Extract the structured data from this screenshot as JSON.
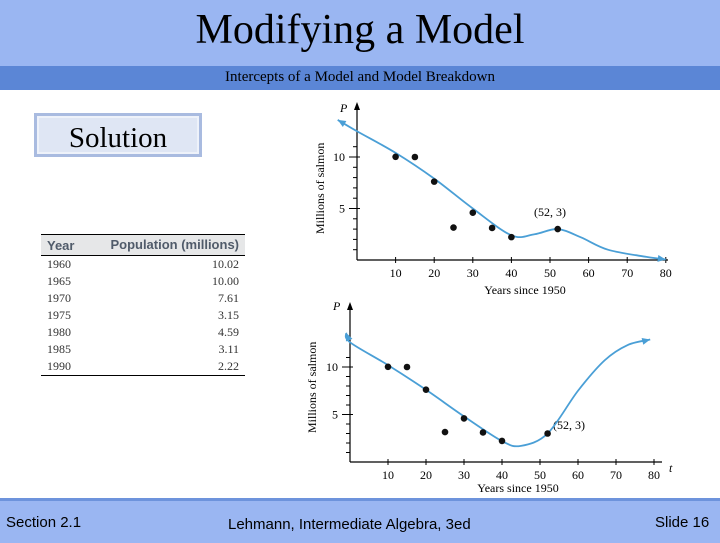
{
  "slide": {
    "title": "Modifying a Model",
    "subtitle": "Intercepts of a Model and Model Breakdown",
    "solution_label": "Solution"
  },
  "table": {
    "headers": [
      "Year",
      "Population (millions)"
    ],
    "rows": [
      [
        "1960",
        "10.02"
      ],
      [
        "1965",
        "10.00"
      ],
      [
        "1970",
        "7.61"
      ],
      [
        "1975",
        "3.15"
      ],
      [
        "1980",
        "4.59"
      ],
      [
        "1985",
        "3.11"
      ],
      [
        "1990",
        "2.22"
      ]
    ]
  },
  "graph_top": {
    "y_axis_var": "P",
    "y_label": "Millions of salmon",
    "x_label": "Years since 1950",
    "x_ticks": [
      "10",
      "20",
      "30",
      "40",
      "50",
      "60",
      "70",
      "80"
    ],
    "y_ticks": [
      "5",
      "10"
    ],
    "annotation": "(52, 3)",
    "points": [
      [
        10,
        10.02
      ],
      [
        15,
        10.0
      ],
      [
        20,
        7.61
      ],
      [
        25,
        3.15
      ],
      [
        30,
        4.59
      ],
      [
        35,
        3.11
      ],
      [
        40,
        2.22
      ],
      [
        52,
        3
      ]
    ]
  },
  "graph_bottom": {
    "y_axis_var": "P",
    "t_var": "t",
    "y_label": "Millions of salmon",
    "x_label": "Years since 1950",
    "x_ticks": [
      "10",
      "20",
      "30",
      "40",
      "50",
      "60",
      "70",
      "80"
    ],
    "y_ticks": [
      "5",
      "10"
    ],
    "annotation": "(52, 3)",
    "points": [
      [
        10,
        10.02
      ],
      [
        15,
        10.0
      ],
      [
        20,
        7.61
      ],
      [
        25,
        3.15
      ],
      [
        30,
        4.59
      ],
      [
        35,
        3.11
      ],
      [
        40,
        2.22
      ],
      [
        52,
        3
      ]
    ]
  },
  "footer": {
    "section": "Section 2.1",
    "book": "Lehmann, Intermediate Algebra, 3ed",
    "slide": "Slide 16"
  },
  "colors": {
    "title_bar": "#9ab6f2",
    "subtitle_bar": "#5b86d6",
    "curve": "#4a9fd6"
  }
}
